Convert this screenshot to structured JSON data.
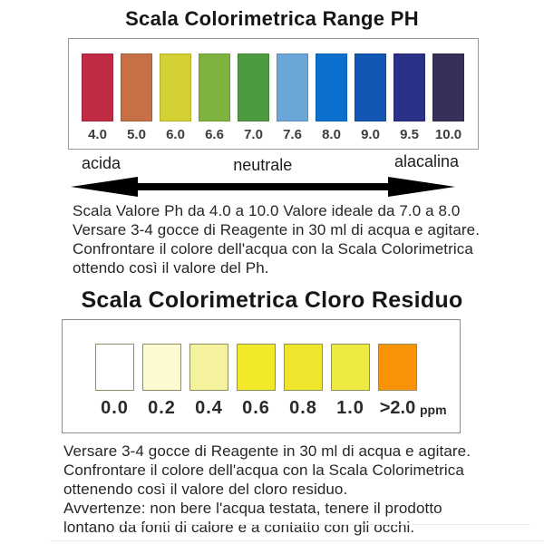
{
  "chart_data": [
    {
      "type": "heatmap",
      "title": "Scala Colorimetrica Range PH",
      "categories": [
        "4.0",
        "5.0",
        "6.0",
        "6.6",
        "7.0",
        "7.6",
        "8.0",
        "9.0",
        "9.5",
        "10.0"
      ],
      "colors": [
        "#bf2b45",
        "#c76f45",
        "#d3d034",
        "#7db33e",
        "#4e9a41",
        "#6ba6d9",
        "#0b6fce",
        "#1257b4",
        "#2b3187",
        "#383058"
      ],
      "axis_labels": {
        "left": "acida",
        "center": "neutrale",
        "right": "alacalina"
      },
      "description": "Scala Valore Ph da 4.0 a 10.0 Valore ideale da 7.0 a 8.0\nVersare 3-4 gocce di Reagente in 30 ml di acqua e agitare.\nConfrontare il colore dell'acqua con la Scala Colorimetrica\nottendo così il valore del Ph."
    },
    {
      "type": "heatmap",
      "title": "Scala Colorimetrica Cloro Residuo",
      "categories": [
        "0.0",
        "0.2",
        "0.4",
        "0.6",
        "0.8",
        "1.0",
        ">2.0"
      ],
      "unit": "ppm",
      "colors": [
        "#ffffff",
        "#fbfad0",
        "#f5f29e",
        "#f3e92b",
        "#efe52d",
        "#edea41",
        "#f89308"
      ],
      "description": "Versare 3-4 gocce di Reagente in 30 ml di acqua e agitare.\nConfrontare il colore dell'acqua con la Scala Colorimetrica\nottenendo così il valore del cloro residuo.\nAvvertenze: non bere l'acqua testata, tenere il prodotto\nlontano da fonti di calore e a contatto con gli occhi."
    }
  ]
}
